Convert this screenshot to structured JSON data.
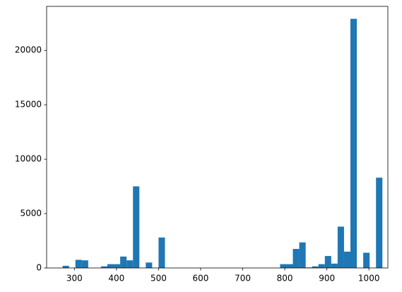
{
  "chart_data": {
    "type": "histogram",
    "bins": [
      272,
      287.2,
      302.4,
      317.6,
      332.8,
      348,
      363.2,
      378.4,
      393.6,
      408.8,
      424,
      439.2,
      454.4,
      469.6,
      484.8,
      500,
      515.2,
      530.4,
      545.6,
      560.8,
      576,
      591.2,
      606.4,
      621.6,
      636.8,
      652,
      667.2,
      682.4,
      697.6,
      712.8,
      728,
      743.2,
      758.4,
      773.6,
      788.8,
      804,
      819.2,
      834.4,
      849.6,
      864.8,
      880,
      895.2,
      910.4,
      925.6,
      940.8,
      956,
      971.2,
      986.4,
      1001.6,
      1016.8,
      1032
    ],
    "values": [
      200,
      0,
      750,
      700,
      0,
      0,
      150,
      350,
      350,
      1050,
      700,
      7500,
      0,
      500,
      0,
      2800,
      0,
      0,
      0,
      0,
      0,
      0,
      0,
      0,
      0,
      0,
      0,
      0,
      0,
      0,
      0,
      0,
      0,
      0,
      350,
      350,
      1750,
      2350,
      50,
      150,
      350,
      1100,
      400,
      3800,
      1500,
      22900,
      0,
      1400,
      0,
      8300
    ],
    "color": "#1f77b4",
    "xlim": [
      234,
      1045
    ],
    "xticks": [
      300,
      400,
      500,
      600,
      700,
      800,
      900,
      1000
    ],
    "ylim": [
      0,
      24045
    ],
    "yticks": [
      0,
      5000,
      10000,
      15000,
      20000
    ]
  }
}
